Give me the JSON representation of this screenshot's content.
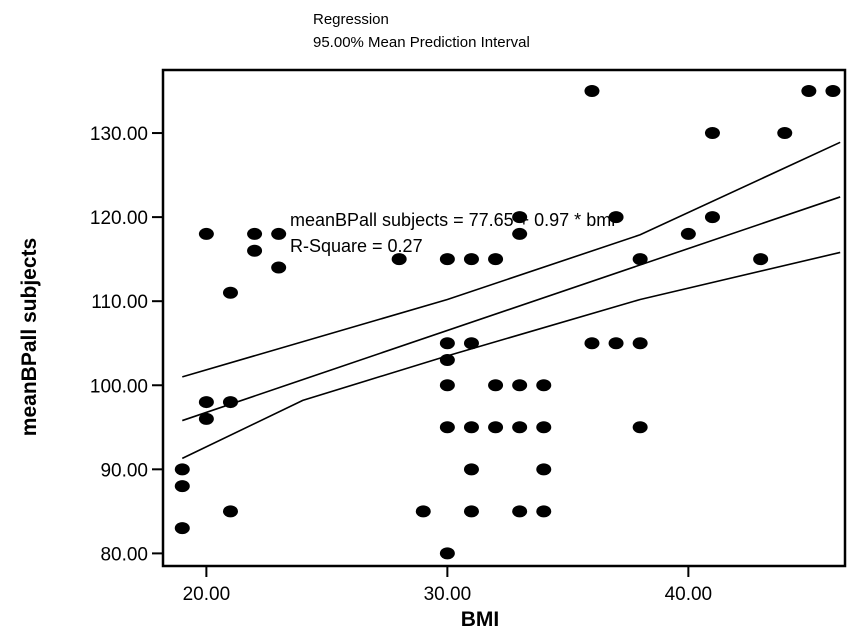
{
  "chart_data": {
    "type": "scatter",
    "title": "Regression",
    "subtitle": "95.00% Mean Prediction Interval",
    "xlabel": "BMI",
    "ylabel": "meanBPall subjects",
    "xlim": [
      18.2,
      46.5
    ],
    "ylim": [
      78.5,
      137.5
    ],
    "x_ticks": [
      20,
      30,
      40
    ],
    "x_tick_labels": [
      "20.00",
      "30.00",
      "40.00"
    ],
    "y_ticks": [
      80,
      90,
      100,
      110,
      120,
      130
    ],
    "y_tick_labels": [
      "80.00",
      "90.00",
      "100.00",
      "110.00",
      "120.00",
      "130.00"
    ],
    "grid": false,
    "points": [
      [
        19,
        90
      ],
      [
        19,
        88
      ],
      [
        19,
        83
      ],
      [
        20,
        118
      ],
      [
        20,
        98
      ],
      [
        20,
        96
      ],
      [
        21,
        111
      ],
      [
        21,
        98
      ],
      [
        21,
        85
      ],
      [
        22,
        118
      ],
      [
        22,
        116
      ],
      [
        23,
        118
      ],
      [
        23,
        114
      ],
      [
        28,
        115
      ],
      [
        29,
        85
      ],
      [
        30,
        115
      ],
      [
        30,
        105
      ],
      [
        30,
        103
      ],
      [
        30,
        100
      ],
      [
        30,
        95
      ],
      [
        30,
        80
      ],
      [
        31,
        115
      ],
      [
        31,
        105
      ],
      [
        31,
        95
      ],
      [
        31,
        90
      ],
      [
        31,
        85
      ],
      [
        32,
        115
      ],
      [
        32,
        100
      ],
      [
        32,
        95
      ],
      [
        33,
        120
      ],
      [
        33,
        118
      ],
      [
        33,
        100
      ],
      [
        33,
        95
      ],
      [
        33,
        85
      ],
      [
        34,
        100
      ],
      [
        34,
        95
      ],
      [
        34,
        90
      ],
      [
        34,
        85
      ],
      [
        36,
        135
      ],
      [
        36,
        105
      ],
      [
        37,
        120
      ],
      [
        37,
        105
      ],
      [
        38,
        115
      ],
      [
        38,
        105
      ],
      [
        38,
        95
      ],
      [
        40,
        118
      ],
      [
        41,
        130
      ],
      [
        41,
        120
      ],
      [
        43,
        115
      ],
      [
        44,
        130
      ],
      [
        45,
        135
      ],
      [
        46,
        135
      ]
    ],
    "regression_line": {
      "x": [
        19,
        46.3
      ],
      "y": [
        95.8,
        122.4
      ]
    },
    "interval_upper": {
      "x": [
        19,
        30,
        38,
        46.3
      ],
      "y": [
        101,
        110.2,
        117.9,
        128.9
      ]
    },
    "interval_lower": {
      "x": [
        19,
        24,
        30,
        38,
        46.3
      ],
      "y": [
        91.3,
        98.2,
        103.5,
        110.2,
        115.8
      ]
    },
    "annotation_lines": [
      "meanBPall subjects = 77.65 + 0.97 * bmi",
      "R-Square = 0.27"
    ],
    "colors": {
      "points": "#000000",
      "lines": "#000000",
      "background": "#ffffff"
    }
  }
}
